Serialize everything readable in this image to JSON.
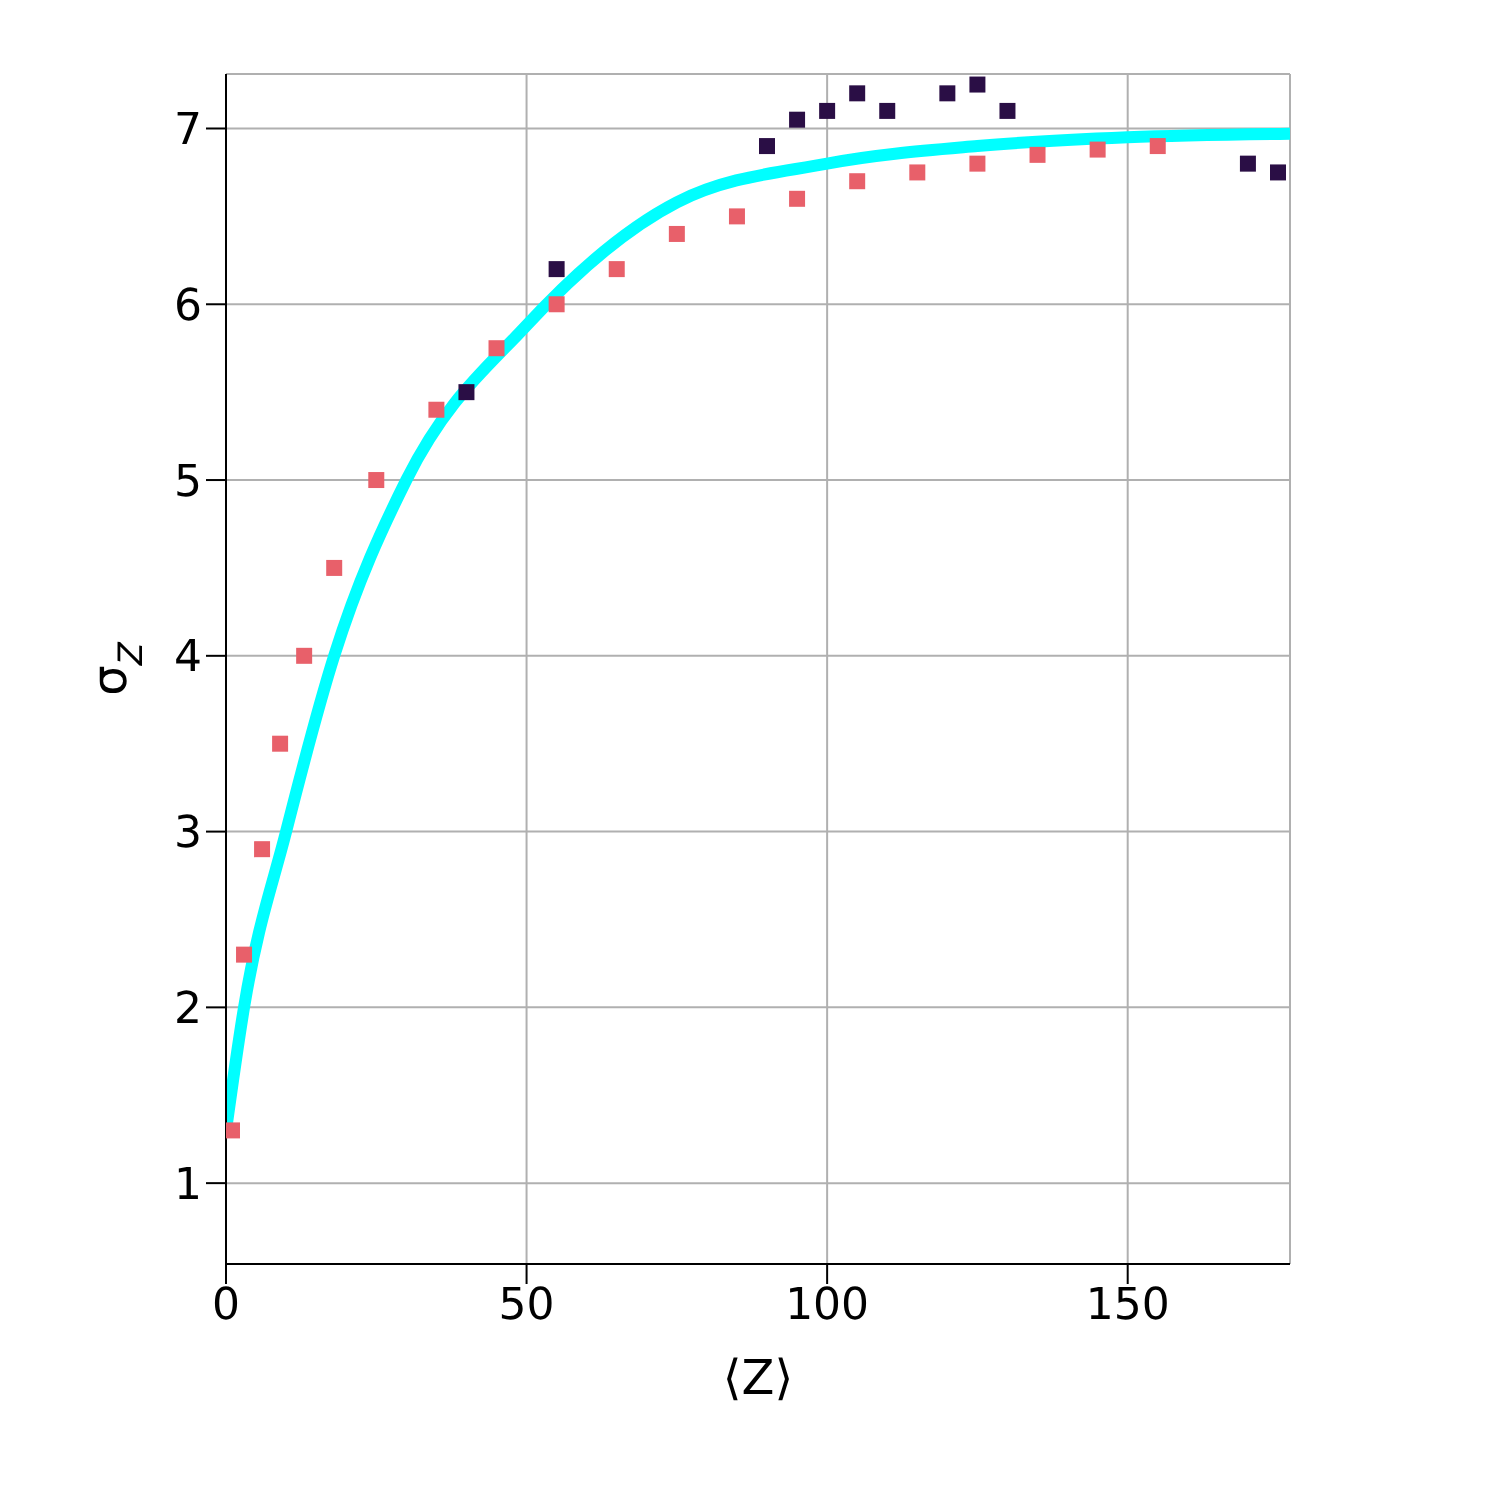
{
  "chart_data": {
    "type": "scatter",
    "xlabel": "⟨Z⟩",
    "ylabel": "σ$_{Z}$",
    "xlim": [
      0,
      177
    ],
    "ylim": [
      0.54,
      7.31
    ],
    "xticks": [
      0,
      50,
      100,
      150
    ],
    "yticks": [
      1,
      2,
      3,
      4,
      5,
      6,
      7
    ],
    "grid": true,
    "legend": false,
    "marker": "square",
    "series": [
      {
        "color": "#e8606a",
        "x": [
          1,
          3,
          6,
          9,
          13,
          18,
          25,
          35,
          45,
          55,
          65,
          75,
          85,
          95,
          105,
          115,
          125,
          135,
          145,
          155
        ],
        "values": [
          1.3,
          2.3,
          2.9,
          3.5,
          4.0,
          4.5,
          5.0,
          5.4,
          5.75,
          6.0,
          6.2,
          6.4,
          6.5,
          6.6,
          6.7,
          6.75,
          6.8,
          6.85,
          6.88,
          6.9
        ]
      },
      {
        "color": "#2a0e45",
        "x": [
          40,
          55,
          90,
          95,
          100,
          105,
          110,
          120,
          125,
          130,
          170,
          175
        ],
        "values": [
          5.5,
          6.2,
          6.9,
          7.05,
          7.1,
          7.2,
          7.1,
          7.2,
          7.25,
          7.1,
          6.8,
          6.75
        ]
      },
      {
        "type": "line",
        "marker": "none",
        "color": "#00ffff",
        "x": [
          0,
          3,
          10,
          18,
          30,
          50,
          75,
          100,
          125,
          150,
          177
        ],
        "values": [
          1.3,
          2.0,
          3.0,
          4.0,
          5.0,
          5.88,
          6.58,
          6.8,
          6.9,
          6.95,
          6.97
        ]
      }
    ]
  }
}
